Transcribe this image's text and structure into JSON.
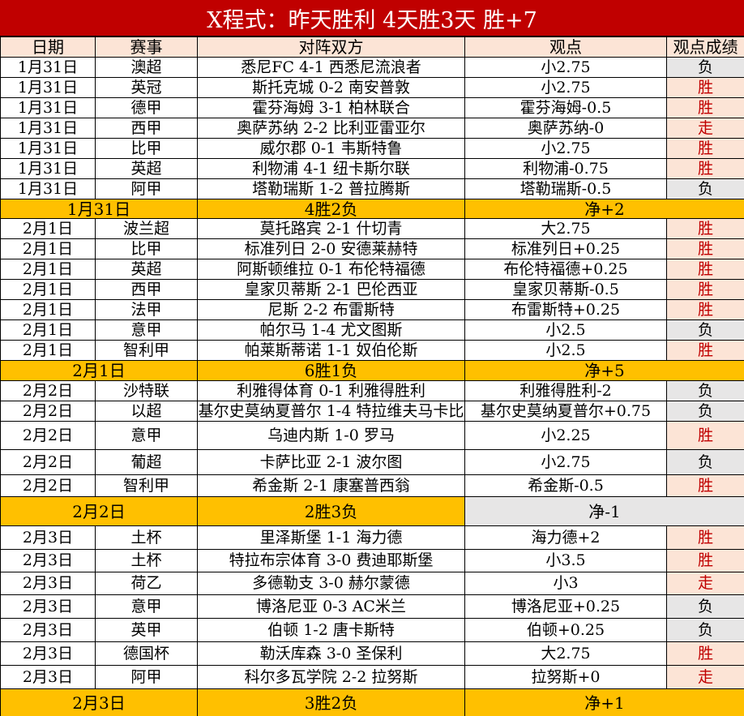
{
  "title": "X程式：昨天胜利 4天胜3天 胜+7",
  "headers": [
    "日期",
    "赛事",
    "对阵双方",
    "观点",
    "观点成绩"
  ],
  "colors": {
    "title_bg": "#C00000",
    "header_bg": "#FCE4D6",
    "summary_bg": "#FFC000",
    "win_text": "#C00000",
    "lose_bg": "#E7E6E6"
  },
  "groups": [
    {
      "rows": [
        [
          "1月31日",
          "澳超",
          "悉尼FC 4-1 西悉尼流浪者",
          "小2.75",
          "负"
        ],
        [
          "1月31日",
          "英冠",
          "斯托克城 0-2 南安普敦",
          "小2.75",
          "胜"
        ],
        [
          "1月31日",
          "德甲",
          "霍芬海姆 3-1 柏林联合",
          "霍芬海姆-0.5",
          "胜"
        ],
        [
          "1月31日",
          "西甲",
          "奥萨苏纳 2-2 比利亚雷亚尔",
          "奥萨苏纳-0",
          "走"
        ],
        [
          "1月31日",
          "比甲",
          "威尔郡 0-1 韦斯特鲁",
          "小2.75",
          "胜"
        ],
        [
          "1月31日",
          "英超",
          "利物浦 4-1 纽卡斯尔联",
          "利物浦-0.75",
          "胜"
        ],
        [
          "1月31日",
          "阿甲",
          "塔勒瑞斯 1-2 普拉腾斯",
          "塔勒瑞斯-0.5",
          "负"
        ]
      ],
      "summary": [
        "1月31日",
        "4胜2负",
        "净+2"
      ],
      "heights": [
        25,
        25,
        25,
        25,
        25,
        25,
        25
      ],
      "sumh": 24
    },
    {
      "rows": [
        [
          "2月1日",
          "波兰超",
          "莫托路宾 2-1 什切青",
          "大2.75",
          "胜"
        ],
        [
          "2月1日",
          "比甲",
          "标准列日 2-0 安德莱赫特",
          "标准列日+0.25",
          "胜"
        ],
        [
          "2月1日",
          "英超",
          "阿斯顿维拉 0-1 布伦特福德",
          "布伦特福德+0.25",
          "胜"
        ],
        [
          "2月1日",
          "西甲",
          "皇家贝蒂斯 2-1 巴伦西亚",
          "皇家贝蒂斯-0.5",
          "胜"
        ],
        [
          "2月1日",
          "法甲",
          "尼斯 2-2 布雷斯特",
          "布雷斯特+0.25",
          "胜"
        ],
        [
          "2月1日",
          "意甲",
          "帕尔马 1-4 尤文图斯",
          "小2.5",
          "负"
        ],
        [
          "2月1日",
          "智利甲",
          "帕莱斯蒂诺 1-1 奴伯伦斯",
          "小2.5",
          "胜"
        ]
      ],
      "summary": [
        "2月1日",
        "6胜1负",
        "净+5"
      ],
      "heights": [
        25,
        25,
        25,
        25,
        25,
        25,
        25
      ],
      "sumh": 25
    },
    {
      "rows": [
        [
          "2月2日",
          "沙特联",
          "利雅得体育 0-1 利雅得胜利",
          "利雅得胜利-2",
          "负"
        ],
        [
          "2月2日",
          "以超",
          "基尔史莫纳夏普尔 1-4 特拉维夫马卡比",
          "基尔史莫纳夏普尔+0.75",
          "负"
        ],
        [
          "2月2日",
          "意甲",
          "乌迪内斯 1-0 罗马",
          "小2.25",
          "胜"
        ],
        [
          "2月2日",
          "葡超",
          "卡萨比亚 2-1 波尔图",
          "小2.75",
          "负"
        ],
        [
          "2月2日",
          "智利甲",
          "希金斯 2-1 康塞普西翁",
          "希金斯-0.5",
          "胜"
        ]
      ],
      "summary": [
        "2月2日",
        "2胜3负",
        "净-1"
      ],
      "heights": [
        25,
        25,
        35,
        31,
        27
      ],
      "sumh": 36,
      "gray_net": true
    },
    {
      "rows": [
        [
          "2月3日",
          "土杯",
          "里泽斯堡 1-1 海力德",
          "海力德+2",
          "胜"
        ],
        [
          "2月3日",
          "土杯",
          "特拉布宗体育 3-0 费迪耶斯堡",
          "小3.5",
          "胜"
        ],
        [
          "2月3日",
          "荷乙",
          "多德勒支 3-0 赫尔蒙德",
          "小3",
          "走"
        ],
        [
          "2月3日",
          "意甲",
          "博洛尼亚 0-3 AC米兰",
          "博洛尼亚+0.25",
          "负"
        ],
        [
          "2月3日",
          "英甲",
          "伯顿 1-2 唐卡斯特",
          "伯顿+0.25",
          "负"
        ],
        [
          "2月3日",
          "德国杯",
          "勒沃库森 3-0 圣保利",
          "大2.75",
          "胜"
        ],
        [
          "2月3日",
          "阿甲",
          "科尔多瓦学院 2-2 拉努斯",
          "拉努斯+0",
          "走"
        ]
      ],
      "summary": [
        "2月3日",
        "3胜2负",
        "净+1"
      ],
      "heights": [
        29,
        28,
        28,
        29,
        29,
        29,
        29
      ],
      "sumh": 34
    }
  ]
}
